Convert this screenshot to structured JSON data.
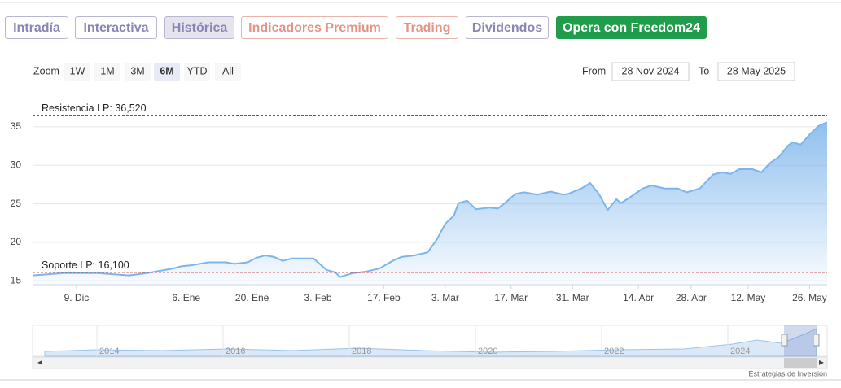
{
  "tabs": [
    "Intradía",
    "Interactiva",
    "Histórica",
    "Indicadores Premium",
    "Trading",
    "Dividendos",
    "Opera con Freedom24"
  ],
  "zoom": {
    "label": "Zoom",
    "options": [
      "1W",
      "1M",
      "3M",
      "6M",
      "YTD",
      "All"
    ],
    "selected": "6M"
  },
  "range": {
    "from_label": "From",
    "from": "28 Nov 2024",
    "to_label": "To",
    "to": "28 May 2025"
  },
  "chart_data": {
    "type": "area",
    "x": [
      0,
      7,
      15,
      22,
      26,
      30,
      32,
      34,
      36,
      40,
      44,
      46,
      49,
      51,
      53,
      55,
      57,
      59,
      62,
      64,
      67,
      69,
      70,
      73,
      76,
      79,
      82,
      84,
      87,
      90,
      92,
      94,
      96,
      97,
      99,
      101,
      104,
      106,
      108,
      110,
      112,
      115,
      118,
      121,
      122,
      125,
      127,
      129,
      131,
      133,
      134,
      136,
      139,
      141,
      144,
      147,
      149,
      152,
      155,
      157,
      159,
      161,
      164,
      166,
      168,
      170,
      172,
      173,
      175,
      177,
      179,
      181
    ],
    "series": [
      {
        "color": "#7cb5ec",
        "values": [
          15.7,
          16.0,
          16.0,
          15.7,
          16.0,
          16.4,
          16.6,
          16.9,
          17.0,
          17.4,
          17.4,
          17.2,
          17.4,
          18.0,
          18.3,
          18.1,
          17.6,
          17.9,
          17.9,
          17.9,
          16.4,
          16.1,
          15.5,
          16.0,
          16.2,
          16.6,
          17.6,
          18.1,
          18.3,
          18.7,
          20.3,
          22.4,
          23.5,
          25.1,
          25.4,
          24.3,
          24.5,
          24.4,
          25.3,
          26.3,
          26.5,
          26.2,
          26.6,
          26.2,
          26.3,
          27.0,
          27.7,
          26.3,
          24.2,
          25.6,
          25.1,
          25.8,
          27.0,
          27.4,
          27.0,
          27.0,
          26.5,
          27.0,
          28.8,
          29.1,
          28.9,
          29.5,
          29.5,
          29.1,
          30.3,
          31.1,
          32.5,
          33.0,
          32.7,
          34.0,
          35.1,
          35.6
        ]
      }
    ],
    "xlim": [
      0,
      181
    ],
    "xticks": [
      {
        "value": 10,
        "label": "9. Dic"
      },
      {
        "value": 35,
        "label": "6. Ene"
      },
      {
        "value": 50,
        "label": "20. Ene"
      },
      {
        "value": 65,
        "label": "3. Feb"
      },
      {
        "value": 80,
        "label": "17. Feb"
      },
      {
        "value": 94,
        "label": "3. Mar"
      },
      {
        "value": 109,
        "label": "17. Mar"
      },
      {
        "value": 123,
        "label": "31. Mar"
      },
      {
        "value": 138,
        "label": "14. Abr"
      },
      {
        "value": 150,
        "label": "28. Abr"
      },
      {
        "value": 163,
        "label": "12. May"
      },
      {
        "value": 177,
        "label": "26. May"
      }
    ],
    "ylim": [
      14.5,
      37
    ],
    "yticks": [
      15,
      20,
      25,
      30,
      35
    ],
    "grid": true,
    "annotations": [
      {
        "label": "Resistencia LP: 36,520",
        "value": 36.52,
        "color": "#2e7d32"
      },
      {
        "label": "Soporte LP: 16,100",
        "value": 16.1,
        "color": "#c62828"
      }
    ]
  },
  "navigator": {
    "years": [
      "2014",
      "2016",
      "2018",
      "2020",
      "2022",
      "2024"
    ]
  },
  "credit": "Estrategias de Inversión"
}
